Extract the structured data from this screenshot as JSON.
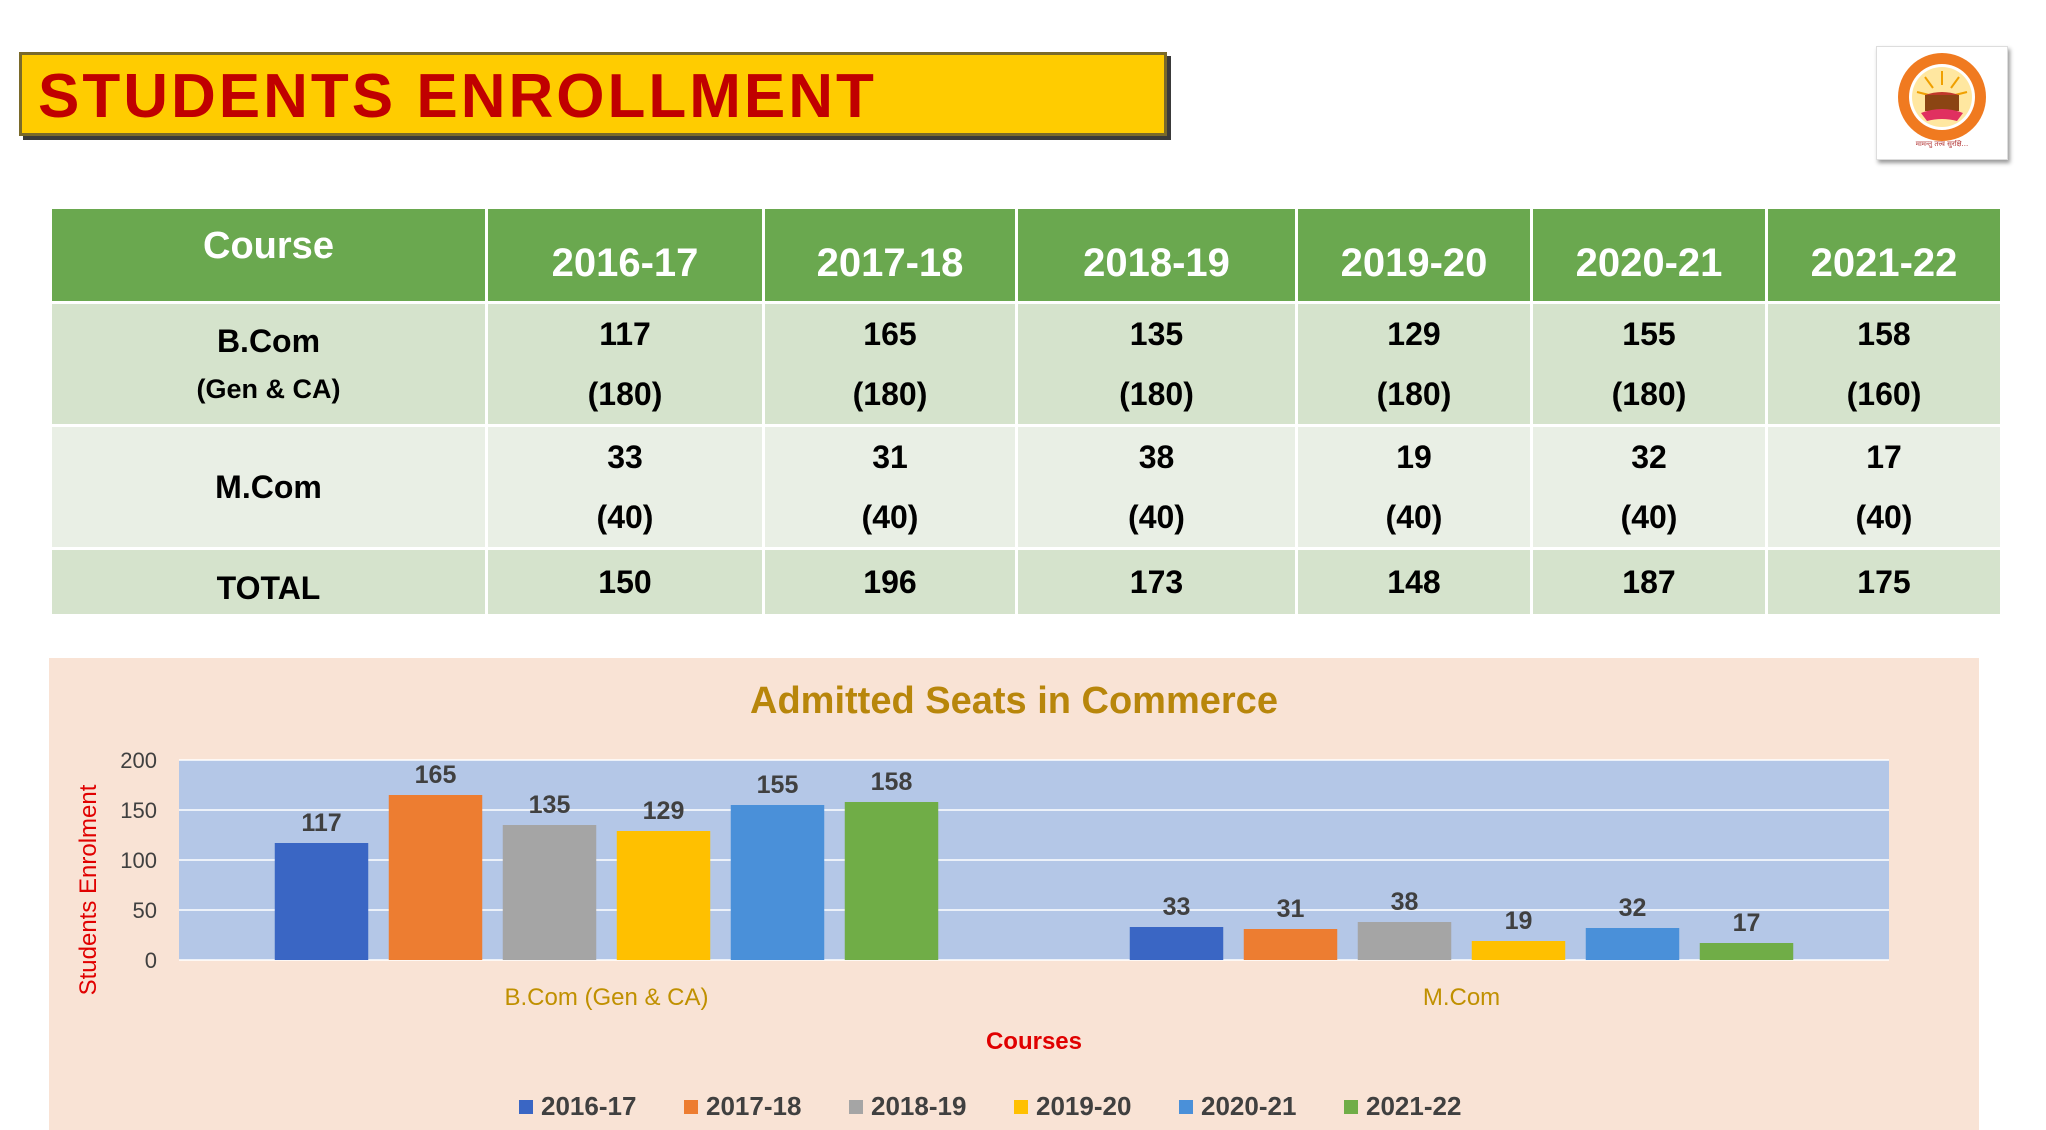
{
  "header": {
    "title": "STUDENTS ENROLLMENT",
    "logo_text": "मामन्तु तत्त्व सुरक्षि..."
  },
  "table": {
    "header": [
      "Course",
      "2016-17",
      "2017-18",
      "2018-19",
      "2019-20",
      "2020-21",
      "2021-22"
    ],
    "rows": [
      {
        "course": "B.Com",
        "course_sub": "(Gen & CA)",
        "admitted": [
          "117",
          "165",
          "135",
          "129",
          "155",
          "158"
        ],
        "seats": [
          "(180)",
          "(180)",
          "(180)",
          "(180)",
          "(180)",
          "(160)"
        ]
      },
      {
        "course": "M.Com",
        "course_sub": "",
        "admitted": [
          "33",
          "31",
          "38",
          "19",
          "32",
          "17"
        ],
        "seats": [
          "(40)",
          "(40)",
          "(40)",
          "(40)",
          "(40)",
          "(40)"
        ]
      },
      {
        "course": "TOTAL",
        "course_sub": "",
        "admitted": [
          "150",
          "196",
          "173",
          "148",
          "187",
          "175"
        ],
        "seats": [
          "",
          "",
          "",
          "",
          "",
          ""
        ]
      }
    ]
  },
  "chart_data": {
    "type": "bar",
    "title": "Admitted Seats  in Commerce",
    "xlabel": "Courses",
    "ylabel": "Students Enrolment",
    "categories": [
      "B.Com (Gen & CA)",
      "M.Com"
    ],
    "ylim": [
      0,
      200
    ],
    "yticks": [
      0,
      50,
      100,
      150,
      200
    ],
    "grid": true,
    "legend_position": "bottom",
    "series": [
      {
        "name": "2016-17",
        "values": [
          117,
          33
        ],
        "color": "#3a66c4"
      },
      {
        "name": "2017-18",
        "values": [
          165,
          31
        ],
        "color": "#ed7d31"
      },
      {
        "name": "2018-19",
        "values": [
          135,
          38
        ],
        "color": "#a5a5a5"
      },
      {
        "name": "2019-20",
        "values": [
          129,
          19
        ],
        "color": "#ffc000"
      },
      {
        "name": "2020-21",
        "values": [
          155,
          32
        ],
        "color": "#4a90d9"
      },
      {
        "name": "2021-22",
        "values": [
          158,
          17
        ],
        "color": "#70ad47"
      }
    ],
    "colors": {
      "plot_bg": "#b4c7e7",
      "title": "#b8860b",
      "axis_title": "#e00000",
      "category_label": "#c09000",
      "value_label": "#404040"
    }
  }
}
